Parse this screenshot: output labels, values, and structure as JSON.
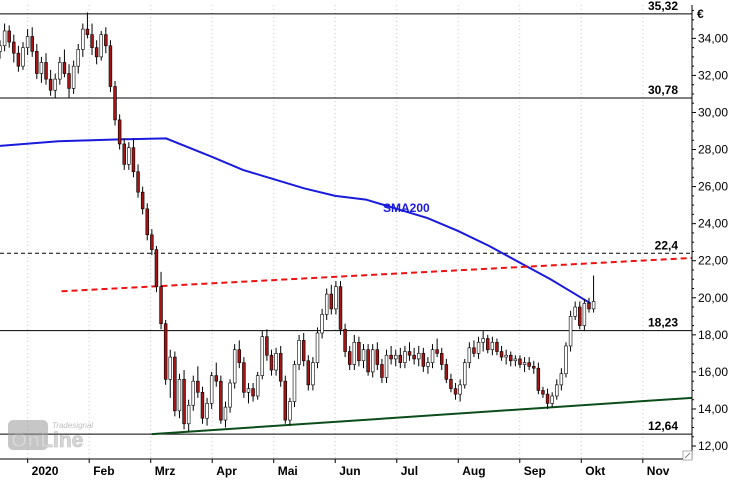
{
  "chart_data": {
    "type": "candlestick",
    "currency_label": "€",
    "watermark": {
      "brand_small": "Tradesignal",
      "brand_large": "OnLine"
    },
    "y_axis": {
      "ylim": [
        11.3,
        35.8
      ],
      "ticks": [
        "12,00",
        "14,00",
        "16,00",
        "18,00",
        "20,00",
        "22,00",
        "24,00",
        "26,00",
        "28,00",
        "30,00",
        "32,00",
        "34,00"
      ],
      "tick_values": [
        12,
        14,
        16,
        18,
        20,
        22,
        24,
        26,
        28,
        30,
        32,
        34
      ]
    },
    "x_axis": {
      "months": [
        "2020",
        "Feb",
        "Mrz",
        "Apr",
        "Mai",
        "Jun",
        "Jul",
        "Aug",
        "Sep",
        "Okt",
        "Nov"
      ],
      "month_index": [
        0,
        1,
        2,
        3,
        4,
        5,
        6,
        7,
        8,
        9,
        10
      ],
      "xlim": [
        -0.45,
        10.8
      ]
    },
    "levels": [
      {
        "label": "35,32",
        "value": 35.32,
        "style": "solid",
        "color": "#000000"
      },
      {
        "label": "30,78",
        "value": 30.78,
        "style": "solid",
        "color": "#000000"
      },
      {
        "label": "22,4",
        "value": 22.4,
        "style": "dashed",
        "color": "#000000"
      },
      {
        "label": "18,23",
        "value": 18.23,
        "style": "solid",
        "color": "#000000"
      },
      {
        "label": "12,64",
        "value": 12.64,
        "style": "solid",
        "color": "#000000"
      }
    ],
    "trendlines": [
      {
        "name": "resistance",
        "color": "#ee1111",
        "style": "dashed",
        "x": [
          0.55,
          10.8
        ],
        "y": [
          20.35,
          22.15
        ]
      },
      {
        "name": "support",
        "color": "#0b4d1a",
        "style": "solid",
        "x": [
          2.02,
          10.8
        ],
        "y": [
          12.64,
          14.6
        ]
      }
    ],
    "sma": {
      "label": "SMA200",
      "color": "#1a1adc",
      "x": [
        -0.45,
        0.5,
        1.5,
        2.25,
        3.0,
        3.5,
        4.0,
        4.5,
        5.0,
        5.5,
        6.0,
        6.5,
        7.0,
        7.5,
        8.0,
        8.5,
        8.9,
        9.15
      ],
      "y": [
        28.2,
        28.45,
        28.55,
        28.6,
        27.6,
        26.9,
        26.4,
        25.9,
        25.5,
        25.3,
        24.8,
        24.3,
        23.6,
        22.8,
        21.9,
        21.0,
        20.2,
        19.7
      ]
    },
    "candles": {
      "x_start": -0.45,
      "x_end": 9.2,
      "ohlc": [
        [
          33.3,
          33.9,
          32.9,
          33.6
        ],
        [
          33.6,
          34.8,
          33.3,
          34.4
        ],
        [
          34.4,
          34.7,
          33.5,
          33.8
        ],
        [
          33.8,
          34.2,
          32.7,
          33.2
        ],
        [
          33.2,
          33.6,
          32.2,
          32.5
        ],
        [
          32.5,
          33.8,
          32.3,
          33.5
        ],
        [
          33.5,
          34.5,
          33.1,
          34.1
        ],
        [
          34.1,
          34.6,
          33.0,
          33.3
        ],
        [
          33.3,
          33.7,
          31.8,
          32.1
        ],
        [
          32.1,
          33.0,
          31.6,
          32.7
        ],
        [
          32.7,
          33.2,
          31.5,
          31.8
        ],
        [
          31.8,
          32.3,
          30.9,
          31.2
        ],
        [
          31.2,
          32.1,
          30.8,
          31.8
        ],
        [
          31.8,
          33.0,
          31.5,
          32.7
        ],
        [
          32.7,
          33.4,
          31.9,
          32.1
        ],
        [
          32.1,
          32.6,
          30.8,
          31.3
        ],
        [
          31.3,
          32.8,
          31.0,
          32.5
        ],
        [
          32.5,
          33.7,
          32.1,
          33.4
        ],
        [
          33.4,
          34.8,
          33.0,
          34.5
        ],
        [
          34.5,
          35.4,
          34.0,
          34.2
        ],
        [
          34.2,
          34.8,
          33.1,
          33.5
        ],
        [
          33.5,
          33.9,
          32.6,
          33.0
        ],
        [
          33.0,
          34.4,
          32.8,
          34.2
        ],
        [
          34.2,
          34.6,
          33.2,
          33.6
        ],
        [
          33.6,
          33.9,
          31.1,
          31.4
        ],
        [
          31.4,
          31.7,
          29.3,
          29.6
        ],
        [
          29.6,
          29.9,
          28.0,
          28.3
        ],
        [
          28.3,
          28.6,
          26.9,
          27.2
        ],
        [
          27.2,
          28.4,
          26.9,
          28.1
        ],
        [
          28.1,
          28.6,
          26.5,
          26.8
        ],
        [
          26.8,
          27.2,
          25.4,
          25.7
        ],
        [
          25.7,
          26.0,
          24.5,
          24.8
        ],
        [
          24.8,
          25.1,
          23.1,
          23.4
        ],
        [
          23.4,
          23.7,
          22.3,
          22.6
        ],
        [
          22.6,
          22.8,
          20.3,
          20.6
        ],
        [
          20.6,
          21.4,
          18.3,
          18.6
        ],
        [
          18.6,
          18.8,
          15.3,
          15.6
        ],
        [
          15.6,
          17.2,
          14.6,
          16.8
        ],
        [
          16.8,
          17.1,
          13.6,
          13.9
        ],
        [
          13.9,
          15.9,
          13.5,
          15.6
        ],
        [
          15.6,
          16.1,
          12.9,
          13.2
        ],
        [
          13.2,
          14.5,
          12.8,
          14.2
        ],
        [
          14.2,
          15.8,
          13.9,
          15.5
        ],
        [
          15.5,
          16.3,
          14.6,
          14.9
        ],
        [
          14.9,
          15.2,
          13.2,
          13.5
        ],
        [
          13.5,
          14.6,
          13.1,
          14.3
        ],
        [
          14.3,
          16.0,
          14.0,
          15.8
        ],
        [
          15.8,
          16.5,
          15.2,
          15.5
        ],
        [
          15.5,
          15.8,
          13.2,
          13.4
        ],
        [
          13.4,
          14.4,
          13.0,
          14.1
        ],
        [
          14.1,
          15.6,
          13.8,
          15.4
        ],
        [
          15.4,
          17.5,
          15.1,
          17.2
        ],
        [
          17.2,
          17.7,
          16.2,
          16.5
        ],
        [
          16.5,
          16.8,
          14.6,
          14.9
        ],
        [
          14.9,
          15.4,
          14.3,
          15.1
        ],
        [
          15.1,
          15.4,
          14.4,
          14.7
        ],
        [
          14.7,
          16.0,
          14.5,
          15.8
        ],
        [
          15.8,
          18.2,
          15.6,
          17.9
        ],
        [
          17.9,
          18.3,
          16.6,
          16.9
        ],
        [
          16.9,
          17.2,
          15.8,
          16.1
        ],
        [
          16.1,
          17.3,
          15.8,
          17.0
        ],
        [
          17.0,
          17.4,
          15.2,
          15.5
        ],
        [
          15.5,
          15.8,
          13.2,
          13.4
        ],
        [
          13.4,
          14.6,
          13.1,
          14.4
        ],
        [
          14.4,
          16.6,
          14.1,
          16.4
        ],
        [
          16.4,
          18.0,
          16.1,
          17.7
        ],
        [
          17.7,
          18.1,
          16.3,
          16.6
        ],
        [
          16.6,
          16.9,
          15.0,
          15.3
        ],
        [
          15.3,
          16.8,
          15.0,
          16.5
        ],
        [
          16.5,
          18.4,
          16.2,
          18.1
        ],
        [
          18.1,
          19.4,
          17.8,
          19.1
        ],
        [
          19.1,
          20.5,
          18.8,
          20.2
        ],
        [
          20.2,
          20.7,
          19.1,
          19.4
        ],
        [
          19.4,
          20.9,
          19.1,
          20.6
        ],
        [
          20.6,
          20.9,
          18.0,
          18.3
        ],
        [
          18.3,
          18.6,
          16.8,
          17.1
        ],
        [
          17.1,
          17.4,
          16.1,
          16.4
        ],
        [
          16.4,
          18.0,
          16.1,
          17.6
        ],
        [
          17.6,
          17.9,
          16.3,
          16.6
        ],
        [
          16.6,
          17.5,
          16.2,
          17.2
        ],
        [
          17.2,
          17.5,
          15.8,
          16.0
        ],
        [
          16.0,
          17.5,
          15.7,
          17.2
        ],
        [
          17.2,
          17.6,
          16.1,
          16.4
        ],
        [
          16.4,
          16.7,
          15.4,
          15.7
        ],
        [
          15.7,
          17.2,
          15.4,
          16.9
        ],
        [
          16.9,
          17.4,
          16.4,
          16.7
        ],
        [
          16.7,
          17.2,
          16.3,
          16.9
        ],
        [
          16.9,
          17.3,
          16.2,
          16.5
        ],
        [
          16.5,
          17.4,
          16.2,
          17.1
        ],
        [
          17.1,
          17.6,
          16.6,
          16.9
        ],
        [
          16.9,
          17.3,
          16.4,
          16.7
        ],
        [
          16.7,
          17.4,
          16.3,
          17.0
        ],
        [
          17.0,
          17.3,
          16.0,
          16.3
        ],
        [
          16.3,
          16.8,
          15.9,
          16.5
        ],
        [
          16.5,
          17.5,
          16.2,
          17.2
        ],
        [
          17.2,
          17.8,
          16.8,
          17.0
        ],
        [
          17.0,
          17.3,
          16.1,
          16.4
        ],
        [
          16.4,
          16.7,
          15.4,
          15.6
        ],
        [
          15.6,
          15.9,
          14.9,
          15.1
        ],
        [
          15.1,
          15.4,
          14.5,
          14.8
        ],
        [
          14.8,
          15.6,
          14.4,
          15.3
        ],
        [
          15.3,
          16.7,
          15.1,
          16.5
        ],
        [
          16.5,
          17.6,
          16.2,
          17.3
        ],
        [
          17.3,
          17.7,
          16.8,
          17.0
        ],
        [
          17.0,
          17.9,
          16.7,
          17.6
        ],
        [
          17.6,
          18.2,
          17.1,
          17.8
        ],
        [
          17.8,
          18.0,
          17.0,
          17.2
        ],
        [
          17.2,
          17.9,
          16.9,
          17.6
        ],
        [
          17.6,
          17.8,
          16.9,
          17.1
        ],
        [
          17.1,
          17.4,
          16.6,
          16.8
        ],
        [
          16.8,
          17.2,
          16.4,
          16.9
        ],
        [
          16.9,
          17.1,
          16.3,
          16.6
        ],
        [
          16.6,
          16.9,
          16.3,
          16.7
        ],
        [
          16.7,
          16.9,
          16.2,
          16.4
        ],
        [
          16.4,
          16.8,
          16.0,
          16.5
        ],
        [
          16.5,
          16.8,
          16.1,
          16.3
        ],
        [
          16.3,
          16.6,
          15.9,
          16.2
        ],
        [
          16.2,
          16.5,
          14.8,
          15.0
        ],
        [
          15.0,
          15.2,
          14.6,
          14.8
        ],
        [
          14.8,
          15.1,
          14.0,
          14.3
        ],
        [
          14.3,
          14.9,
          14.1,
          14.7
        ],
        [
          14.7,
          15.6,
          14.5,
          15.3
        ],
        [
          15.3,
          16.2,
          15.0,
          15.9
        ],
        [
          15.9,
          17.6,
          15.7,
          17.4
        ],
        [
          17.4,
          19.3,
          17.1,
          19.0
        ],
        [
          19.0,
          19.8,
          18.8,
          19.5
        ],
        [
          19.5,
          19.8,
          18.3,
          18.5
        ],
        [
          18.5,
          19.9,
          18.2,
          19.7
        ],
        [
          19.7,
          20.0,
          19.2,
          19.4
        ],
        [
          19.4,
          21.2,
          19.2,
          19.8
        ]
      ]
    }
  }
}
